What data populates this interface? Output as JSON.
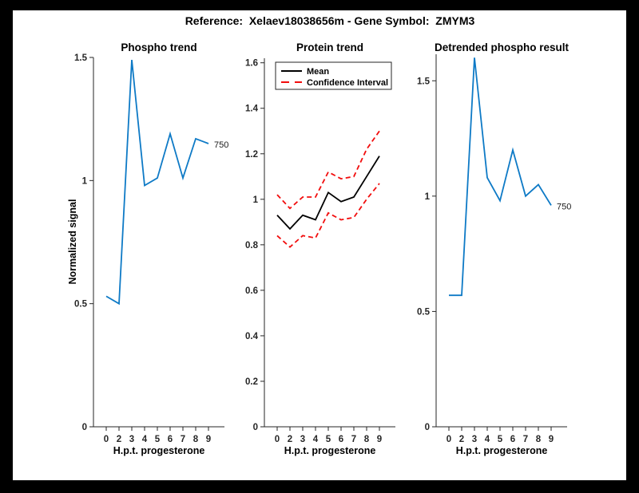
{
  "figure": {
    "title": "Reference:  Xelaev18038656m - Gene Symbol:  ZMYM3",
    "background": "#000000",
    "page_background": "#FFFFFF"
  },
  "colors": {
    "line_blue": "#0E7AC6",
    "line_red": "#F20D0D",
    "line_black": "#000000",
    "axis": "#262626"
  },
  "chart_data": [
    {
      "type": "line",
      "title": "Phospho trend",
      "xlabel": "H.p.t. progesterone",
      "ylabel": "Normalized signal",
      "categories": [
        "0",
        "2",
        "3",
        "4",
        "5",
        "6",
        "7",
        "8",
        "9"
      ],
      "ylim": [
        0,
        1.5
      ],
      "yticks": [
        0,
        0.5,
        1,
        1.5
      ],
      "ytick_labels": [
        "0",
        "0.5",
        "1",
        "1.5"
      ],
      "grid": false,
      "legend": null,
      "end_label": "750",
      "series": [
        {
          "name": "phospho-signal",
          "color": "#0E7AC6",
          "dash": false,
          "values": [
            0.53,
            0.5,
            1.49,
            0.98,
            1.01,
            1.19,
            1.01,
            1.17,
            1.15
          ]
        }
      ]
    },
    {
      "type": "line",
      "title": "Protein trend",
      "xlabel": "H.p.t. progesterone",
      "ylabel": "",
      "categories": [
        "0",
        "2",
        "3",
        "4",
        "5",
        "6",
        "7",
        "8",
        "9"
      ],
      "ylim": [
        0,
        1.62
      ],
      "yticks": [
        0,
        0.2,
        0.4,
        0.6,
        0.8,
        1,
        1.2,
        1.4,
        1.6
      ],
      "ytick_labels": [
        "0",
        "0.2",
        "0.4",
        "0.6",
        "0.8",
        "1",
        "1.2",
        "1.4",
        "1.6"
      ],
      "grid": false,
      "end_label": null,
      "legend": {
        "position": "northeast",
        "entries": [
          {
            "label": "Mean",
            "color": "#000000",
            "dash": false
          },
          {
            "label": "Confidence Interval",
            "color": "#F20D0D",
            "dash": true
          }
        ]
      },
      "series": [
        {
          "name": "mean",
          "color": "#000000",
          "dash": false,
          "values": [
            0.93,
            0.87,
            0.93,
            0.91,
            1.03,
            0.99,
            1.01,
            1.1,
            1.19
          ]
        },
        {
          "name": "confidence-upper",
          "color": "#F20D0D",
          "dash": true,
          "values": [
            1.02,
            0.96,
            1.01,
            1.01,
            1.12,
            1.09,
            1.1,
            1.22,
            1.3
          ]
        },
        {
          "name": "confidence-lower",
          "color": "#F20D0D",
          "dash": true,
          "values": [
            0.84,
            0.79,
            0.84,
            0.83,
            0.94,
            0.91,
            0.92,
            1.0,
            1.07
          ]
        }
      ]
    },
    {
      "type": "line",
      "title": "Detrended phospho result",
      "xlabel": "H.p.t. progesterone",
      "ylabel": "",
      "categories": [
        "0",
        "2",
        "3",
        "4",
        "5",
        "6",
        "7",
        "8",
        "9"
      ],
      "ylim": [
        0,
        1.615
      ],
      "yticks": [
        0,
        0.5,
        1,
        1.5
      ],
      "ytick_labels": [
        "0",
        "0.5",
        "1",
        "1.5"
      ],
      "grid": false,
      "legend": null,
      "end_label": "750",
      "series": [
        {
          "name": "detrended-phospho-signal",
          "color": "#0E7AC6",
          "dash": false,
          "values": [
            0.57,
            0.57,
            1.6,
            1.08,
            0.98,
            1.2,
            1.0,
            1.05,
            0.96
          ]
        }
      ]
    }
  ]
}
